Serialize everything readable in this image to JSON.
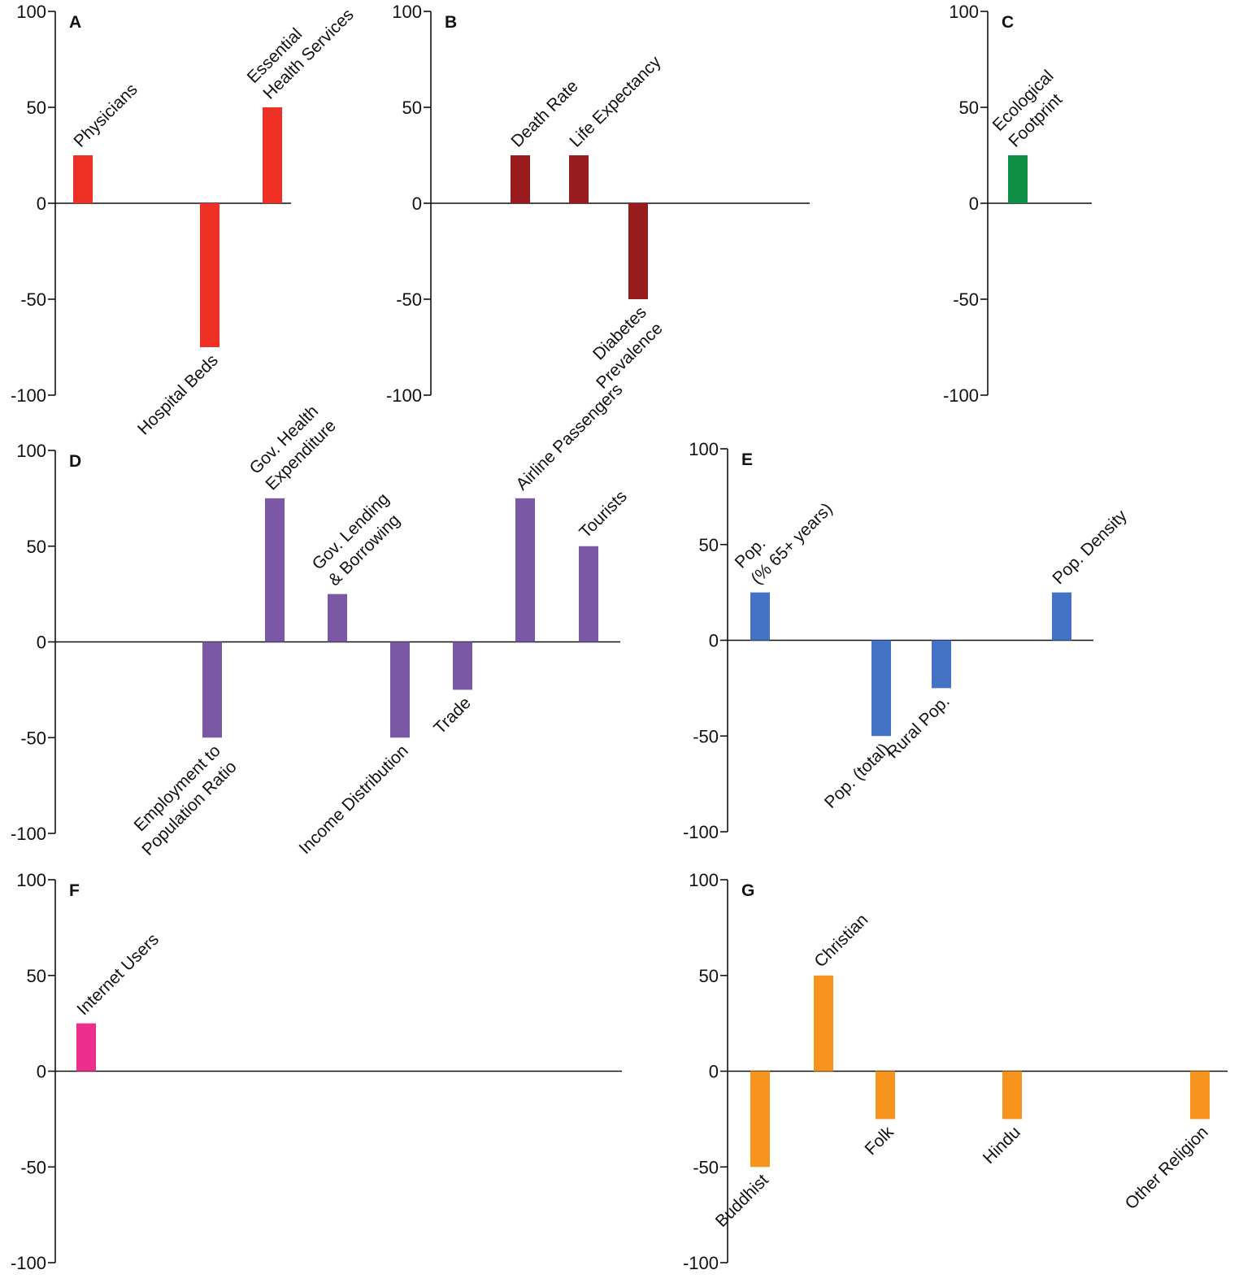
{
  "chart_data": [
    {
      "type": "bar",
      "panel": "A",
      "color": "#ee3124",
      "ylim": [
        -100,
        100
      ],
      "yticks": [
        "100",
        "50",
        "0",
        "-50",
        "-100"
      ],
      "categories": [
        "Physicians",
        "Hospital Beds",
        "Essential Health Services"
      ],
      "label_lines": [
        [
          "Physicians"
        ],
        [
          "Hospital Beds"
        ],
        [
          "Essential",
          "Health Services"
        ]
      ],
      "values": [
        25,
        -75,
        50
      ]
    },
    {
      "type": "bar",
      "panel": "B",
      "color": "#981b1e",
      "ylim": [
        -100,
        100
      ],
      "yticks": [
        "100",
        "50",
        "0",
        "-50",
        "-100"
      ],
      "categories": [
        "Death Rate",
        "Life Expectancy",
        "Diabetes Prevalence"
      ],
      "label_lines": [
        [
          "Death Rate"
        ],
        [
          "Life Expectancy"
        ],
        [
          "Diabetes",
          "Prevalence"
        ]
      ],
      "values": [
        25,
        25,
        -50
      ]
    },
    {
      "type": "bar",
      "panel": "C",
      "color": "#0f8f45",
      "ylim": [
        -100,
        100
      ],
      "yticks": [
        "100",
        "50",
        "0",
        "-50",
        "-100"
      ],
      "categories": [
        "Ecological Footprint"
      ],
      "label_lines": [
        [
          "Ecological",
          "Footprint"
        ]
      ],
      "values": [
        25
      ]
    },
    {
      "type": "bar",
      "panel": "D",
      "color": "#7a58a6",
      "ylim": [
        -100,
        100
      ],
      "yticks": [
        "100",
        "50",
        "0",
        "-50",
        "-100"
      ],
      "categories": [
        "Employment to Population Ratio",
        "Gov. Health Expenditure",
        "Gov. Lending & Borrowing",
        "Income Distribution",
        "Trade",
        "Airline Passengers",
        "Tourists"
      ],
      "label_lines": [
        [
          "Employment to",
          "Population Ratio"
        ],
        [
          "Gov. Health",
          "Expenditure"
        ],
        [
          "Gov. Lending",
          "& Borrowing"
        ],
        [
          "Income Distribution"
        ],
        [
          "Trade"
        ],
        [
          "Airline Passengers"
        ],
        [
          "Tourists"
        ]
      ],
      "values": [
        -50,
        75,
        25,
        -50,
        -25,
        75,
        50
      ]
    },
    {
      "type": "bar",
      "panel": "E",
      "color": "#4472c4",
      "ylim": [
        -100,
        100
      ],
      "yticks": [
        "100",
        "50",
        "0",
        "-50",
        "-100"
      ],
      "categories": [
        "Pop. (% 65+ years)",
        "Pop. (total)",
        "Rural Pop.",
        "Pop. Density"
      ],
      "label_lines": [
        [
          "Pop.",
          "(% 65+ years)"
        ],
        [
          "Pop. (total)"
        ],
        [
          "Rural Pop."
        ],
        [
          "Pop. Density"
        ]
      ],
      "values": [
        25,
        -50,
        -25,
        25
      ]
    },
    {
      "type": "bar",
      "panel": "F",
      "color": "#ec2f8f",
      "ylim": [
        -100,
        100
      ],
      "yticks": [
        "100",
        "50",
        "0",
        "-50",
        "-100"
      ],
      "categories": [
        "Internet Users"
      ],
      "label_lines": [
        [
          "Internet Users"
        ]
      ],
      "values": [
        25
      ]
    },
    {
      "type": "bar",
      "panel": "G",
      "color": "#f7941d",
      "ylim": [
        -100,
        100
      ],
      "yticks": [
        "100",
        "50",
        "0",
        "-50",
        "-100"
      ],
      "categories": [
        "Buddhist",
        "Christian",
        "Folk",
        "Hindu",
        "Other Religion"
      ],
      "label_lines": [
        [
          "Buddhist"
        ],
        [
          "Christian"
        ],
        [
          "Folk"
        ],
        [
          "Hindu"
        ],
        [
          "Other Religion"
        ]
      ],
      "values": [
        -50,
        50,
        -25,
        -25,
        -25
      ]
    }
  ]
}
